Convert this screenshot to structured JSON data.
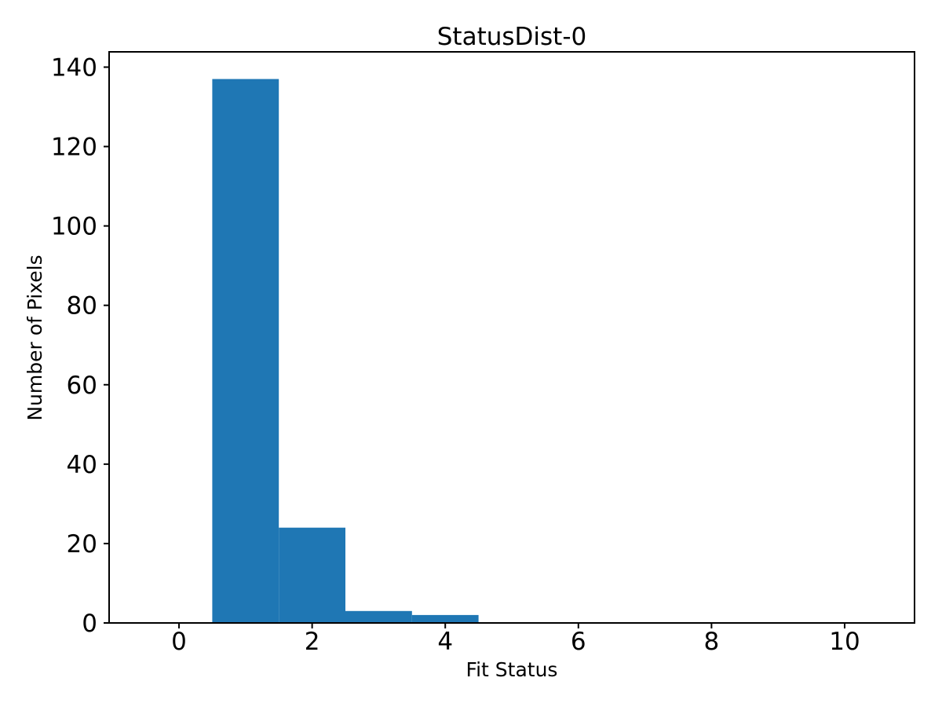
{
  "figure": {
    "background": "#ffffff",
    "text_color": "#000000",
    "spine_color": "#000000"
  },
  "chart_data": {
    "type": "bar",
    "title": "StatusDist-0",
    "xlabel": "Fit Status",
    "ylabel": "Number of Pixels",
    "bar_color": "#1f77b4",
    "bin_edges": [
      -0.5,
      0.5,
      1.5,
      2.5,
      3.5,
      4.5,
      5.5,
      6.5,
      7.5,
      8.5,
      9.5,
      10.5
    ],
    "bin_centers": [
      0,
      1,
      2,
      3,
      4,
      5,
      6,
      7,
      8,
      9,
      10
    ],
    "counts": [
      0,
      137,
      24,
      3,
      2,
      0,
      0,
      0,
      0,
      0,
      0
    ],
    "x_ticks": [
      0,
      2,
      4,
      6,
      8,
      10
    ],
    "y_ticks": [
      0,
      20,
      40,
      60,
      80,
      100,
      120,
      140
    ],
    "xlim": [
      -1.05,
      11.05
    ],
    "ylim": [
      0,
      143.85
    ],
    "grid": false,
    "legend_position": "none"
  }
}
